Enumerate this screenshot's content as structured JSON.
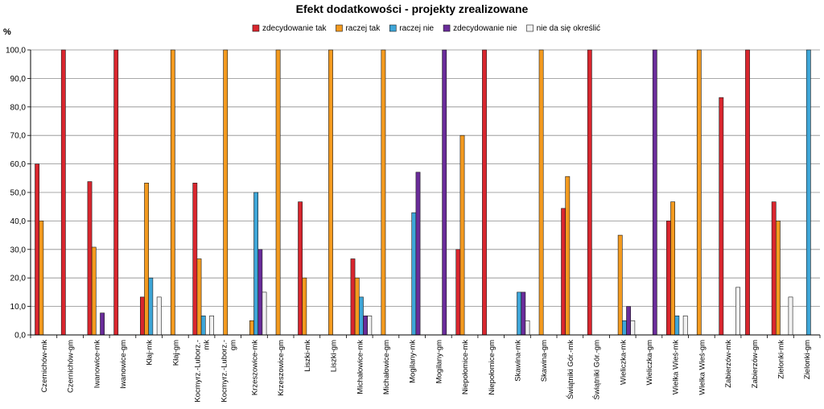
{
  "chart_data": {
    "type": "bar",
    "title": "Efekt dodatkowości - projekty zrealizowane",
    "ylabel": "%",
    "xlabel": "",
    "ylim": [
      0,
      100
    ],
    "yticks": [
      "0,0",
      "10,0",
      "20,0",
      "30,0",
      "40,0",
      "50,0",
      "60,0",
      "70,0",
      "80,0",
      "90,0",
      "100,0"
    ],
    "grid": true,
    "legend_position": "top",
    "categories": [
      [
        "Czernichów-mk"
      ],
      [
        "Czernichów-gm"
      ],
      [
        "Iwanowice-mk"
      ],
      [
        "Iwanowice-gm"
      ],
      [
        "Kłaj-mk"
      ],
      [
        "Kłaj-gm"
      ],
      [
        "Kocmyrz.-Luborz.-",
        "mk"
      ],
      [
        "Kocmyrz.-Luborz.-",
        "gm"
      ],
      [
        "Krzeszowice-mk"
      ],
      [
        "Krzeszowice-gm"
      ],
      [
        "Liszki-mk"
      ],
      [
        "Liszki-gm"
      ],
      [
        "Michałowice-mk"
      ],
      [
        "Michałowice-gm"
      ],
      [
        "Mogilany-mk"
      ],
      [
        "Mogilany-gm"
      ],
      [
        "Niepołomice-mk"
      ],
      [
        "Niepołomice-gm"
      ],
      [
        "Skawina-mk"
      ],
      [
        "Skawina-gm"
      ],
      [
        "Świątniki Gór.-mk"
      ],
      [
        "Świątniki Gór.-gm"
      ],
      [
        "Wieliczka-mk"
      ],
      [
        "Wieliczka-gm"
      ],
      [
        "Wielka Wieś-mk"
      ],
      [
        "Wielka Wieś-gm"
      ],
      [
        "Zabierzów-mk"
      ],
      [
        "Zabierzów-gm"
      ],
      [
        "Zielonki-mk"
      ],
      [
        "Zielonki-gm"
      ]
    ],
    "series": [
      {
        "name": "zdecydowanie tak",
        "color": "#d9262e",
        "values": [
          60,
          100,
          53.8,
          100,
          13.3,
          0,
          53.3,
          0,
          0,
          0,
          46.7,
          0,
          26.7,
          0,
          0,
          0,
          30,
          100,
          0,
          0,
          44.4,
          100,
          0,
          0,
          40,
          0,
          83.3,
          100,
          46.7,
          0
        ]
      },
      {
        "name": "raczej tak",
        "color": "#f39a1f",
        "values": [
          40,
          0,
          30.8,
          0,
          53.3,
          100,
          26.7,
          100,
          5,
          100,
          20,
          100,
          20,
          100,
          0,
          0,
          70,
          0,
          0,
          100,
          55.6,
          0,
          35,
          0,
          46.7,
          100,
          0,
          0,
          40,
          0
        ]
      },
      {
        "name": "raczej nie",
        "color": "#3ea6d8",
        "values": [
          0,
          0,
          0,
          0,
          20,
          0,
          6.7,
          0,
          50,
          0,
          0,
          0,
          13.3,
          0,
          42.9,
          0,
          0,
          0,
          15,
          0,
          0,
          0,
          5,
          0,
          6.7,
          0,
          0,
          0,
          0,
          100
        ]
      },
      {
        "name": "zdecydowanie nie",
        "color": "#6a2c9a",
        "values": [
          0,
          0,
          7.7,
          0,
          0,
          0,
          0,
          0,
          30,
          0,
          0,
          0,
          6.7,
          0,
          57.1,
          100,
          0,
          0,
          15,
          0,
          0,
          0,
          10,
          100,
          0,
          0,
          0,
          0,
          0,
          0
        ]
      },
      {
        "name": "nie da się określić",
        "color": "#f2f2f2",
        "values": [
          0,
          0,
          0,
          0,
          13.3,
          0,
          6.7,
          0,
          15,
          0,
          0,
          0,
          6.7,
          0,
          0,
          0,
          0,
          0,
          5,
          0,
          0,
          0,
          5,
          0,
          6.7,
          0,
          16.7,
          0,
          13.3,
          0
        ]
      }
    ]
  }
}
